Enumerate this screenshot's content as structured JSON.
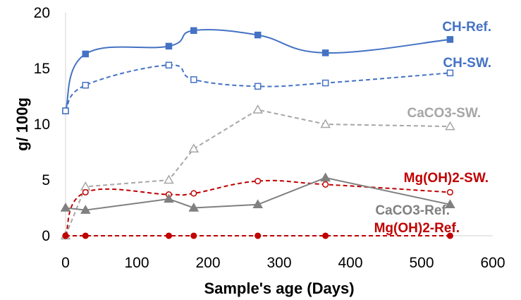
{
  "chart_data": {
    "type": "line",
    "title": "",
    "xlabel": "Sample's age (Days)",
    "ylabel": "g/ 100g",
    "xlim": [
      0,
      600
    ],
    "ylim": [
      0,
      20
    ],
    "xticks": [
      0,
      100,
      200,
      300,
      400,
      500,
      600
    ],
    "yticks": [
      0,
      5,
      10,
      15,
      20
    ],
    "grid": false,
    "legend": "inline labels next to series",
    "series": [
      {
        "name": "CH-Ref.",
        "color": "#4472C4",
        "line_style": "solid",
        "smooth": true,
        "marker": "filled-square",
        "x": [
          0,
          28,
          145,
          180,
          270,
          365,
          540
        ],
        "y": [
          11.2,
          16.3,
          17.0,
          18.4,
          18.0,
          16.4,
          17.6
        ]
      },
      {
        "name": "CH-SW.",
        "color": "#4472C4",
        "line_style": "dashed",
        "smooth": true,
        "marker": "open-square",
        "x": [
          0,
          28,
          145,
          180,
          270,
          365,
          540
        ],
        "y": [
          11.2,
          13.5,
          15.3,
          14.0,
          13.4,
          13.7,
          14.6
        ]
      },
      {
        "name": "CaCO3-SW.",
        "color": "#A6A6A6",
        "line_style": "dashed",
        "smooth": false,
        "marker": "open-triangle",
        "x": [
          0,
          28,
          145,
          180,
          270,
          365,
          540
        ],
        "y": [
          0.0,
          4.4,
          5.0,
          7.8,
          11.3,
          10.0,
          9.8
        ]
      },
      {
        "name": "Mg(OH)2-SW.",
        "color": "#C00000",
        "line_style": "dashed",
        "smooth": true,
        "marker": "open-circle",
        "x": [
          0,
          28,
          145,
          180,
          270,
          365,
          540
        ],
        "y": [
          0.0,
          3.9,
          3.7,
          3.8,
          4.9,
          4.6,
          3.9
        ]
      },
      {
        "name": "CaCO3-Ref.",
        "color": "#808080",
        "line_style": "solid",
        "smooth": false,
        "marker": "filled-triangle",
        "x": [
          0,
          28,
          145,
          180,
          270,
          365,
          540
        ],
        "y": [
          2.5,
          2.3,
          3.3,
          2.5,
          2.8,
          5.2,
          2.8
        ]
      },
      {
        "name": "Mg(OH)2-Ref.",
        "color": "#C00000",
        "line_style": "dashed",
        "smooth": false,
        "marker": "filled-circle",
        "x": [
          0,
          28,
          145,
          180,
          270,
          365,
          540
        ],
        "y": [
          0.0,
          0.0,
          0.0,
          0.0,
          0.0,
          0.0,
          0.0
        ]
      }
    ]
  }
}
